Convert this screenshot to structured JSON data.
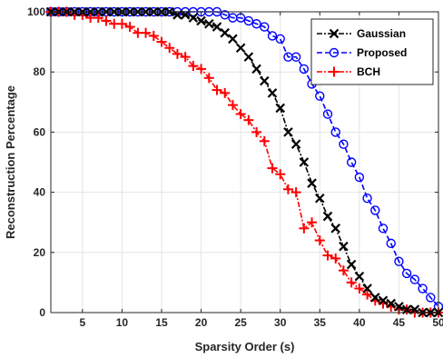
{
  "chart_data": {
    "type": "line",
    "title": "",
    "xlabel": "Sparsity Order (s)",
    "ylabel": "Reconstruction Percentage",
    "xlim": [
      1,
      50
    ],
    "ylim": [
      0,
      100
    ],
    "xticks": [
      5,
      10,
      15,
      20,
      25,
      30,
      35,
      40,
      45,
      50
    ],
    "yticks": [
      0,
      20,
      40,
      60,
      80,
      100
    ],
    "grid": true,
    "legend_position": "top-right",
    "x": [
      1,
      2,
      3,
      4,
      5,
      6,
      7,
      8,
      9,
      10,
      11,
      12,
      13,
      14,
      15,
      16,
      17,
      18,
      19,
      20,
      21,
      22,
      23,
      24,
      25,
      26,
      27,
      28,
      29,
      30,
      31,
      32,
      33,
      34,
      35,
      36,
      37,
      38,
      39,
      40,
      41,
      42,
      43,
      44,
      45,
      46,
      47,
      48,
      49,
      50
    ],
    "series": [
      {
        "name": "Gaussian",
        "color": "#000000",
        "marker": "x",
        "line": "dash-dot",
        "values": [
          100,
          100,
          100,
          100,
          100,
          100,
          100,
          100,
          100,
          100,
          100,
          100,
          100,
          100,
          100,
          100,
          99,
          99,
          98,
          97,
          96,
          95,
          93,
          91,
          88,
          85,
          81,
          77,
          73,
          68,
          60,
          56,
          50,
          43,
          38,
          32,
          28,
          22,
          16,
          12,
          8,
          5,
          4,
          3,
          2,
          1,
          1,
          0,
          0,
          0
        ]
      },
      {
        "name": "Proposed",
        "color": "#0000ff",
        "marker": "o",
        "line": "dash",
        "values": [
          100,
          100,
          100,
          100,
          100,
          100,
          100,
          100,
          100,
          100,
          100,
          100,
          100,
          100,
          100,
          100,
          100,
          100,
          100,
          100,
          100,
          100,
          99,
          98,
          98,
          97,
          96,
          95,
          92,
          91,
          85,
          85,
          81,
          76,
          72,
          66,
          60,
          56,
          50,
          45,
          38,
          34,
          28,
          23,
          17,
          13,
          11,
          8,
          5,
          2
        ]
      },
      {
        "name": "BCH",
        "color": "#ff0000",
        "marker": "+",
        "line": "dash-dot",
        "values": [
          100,
          100,
          100,
          99,
          99,
          98,
          98,
          97,
          96,
          96,
          95,
          93,
          93,
          92,
          90,
          88,
          86,
          85,
          82,
          81,
          78,
          74,
          73,
          69,
          66,
          64,
          60,
          57,
          48,
          46,
          41,
          40,
          28,
          30,
          24,
          19,
          18,
          14,
          10,
          8,
          6,
          4,
          3,
          2,
          1,
          1,
          0,
          0,
          0,
          0
        ]
      }
    ]
  },
  "colors": {
    "axis": "#262626",
    "grid": "#e3e3e3",
    "background": "#ffffff"
  }
}
